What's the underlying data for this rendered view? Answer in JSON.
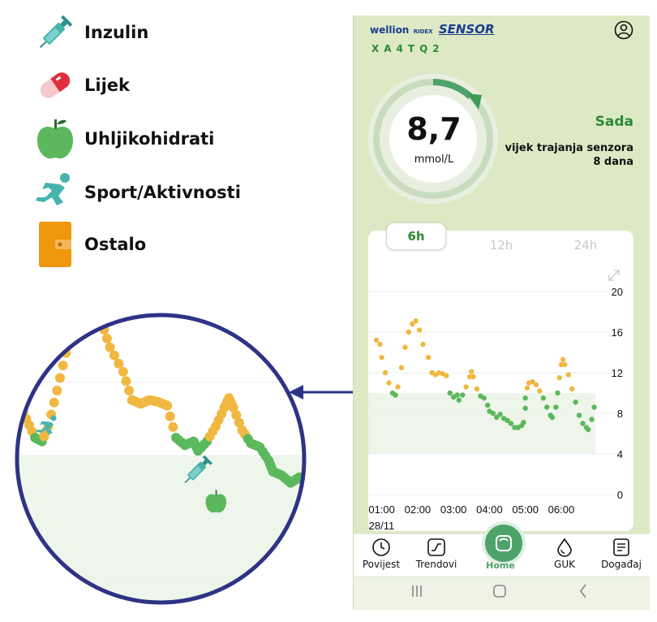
{
  "legend": [
    {
      "label": "Inzulin",
      "icon": "syringe-icon"
    },
    {
      "label": "Lijek",
      "icon": "pill-icon"
    },
    {
      "label": "Uhljikohidrati",
      "icon": "apple-icon"
    },
    {
      "label": "Sport/Aktivnosti",
      "icon": "running-person-icon"
    },
    {
      "label": "Ostalo",
      "icon": "wallet-icon"
    }
  ],
  "app": {
    "brand": "wellion",
    "brand_sub": "RIDEX",
    "brand_product": "SENSOR",
    "device_code": "XA4TQ2",
    "glucose_value": "8,7",
    "glucose_unit": "mmol/L",
    "status": "Sada",
    "sensor_life_label": "vijek trajanja senzora",
    "sensor_life_value": "8 dana",
    "tabs": [
      "6h",
      "12h",
      "24h"
    ],
    "active_tab": "6h"
  },
  "chart_data": {
    "type": "scatter",
    "x_ticks": [
      "01:00",
      "02:00",
      "03:00",
      "04:00",
      "05:00",
      "06:00"
    ],
    "date_label": "28/11",
    "y_ticks": [
      "0",
      "4",
      "8",
      "12",
      "16",
      "20"
    ],
    "ylim": [
      0,
      20
    ],
    "xlim": [
      0.85,
      6.95
    ],
    "target_range": [
      4,
      10
    ],
    "colors": {
      "in_range": "#5cb85c",
      "high": "#f0b840",
      "target_band": "#eef5ea"
    },
    "readings": [
      [
        0.85,
        15.2
      ],
      [
        0.95,
        14.8
      ],
      [
        1.0,
        13.5
      ],
      [
        1.1,
        12.0
      ],
      [
        1.2,
        11.0
      ],
      [
        1.3,
        10.0
      ],
      [
        1.38,
        9.8
      ],
      [
        1.45,
        10.6
      ],
      [
        1.55,
        12.5
      ],
      [
        1.65,
        14.5
      ],
      [
        1.75,
        16.0
      ],
      [
        1.85,
        16.8
      ],
      [
        1.95,
        17.1
      ],
      [
        2.05,
        16.2
      ],
      [
        2.15,
        14.8
      ],
      [
        2.3,
        13.5
      ],
      [
        2.4,
        12.0
      ],
      [
        2.5,
        11.8
      ],
      [
        2.6,
        12.0
      ],
      [
        2.7,
        11.9
      ],
      [
        2.8,
        11.7
      ],
      [
        2.9,
        10.0
      ],
      [
        3.0,
        9.6
      ],
      [
        3.1,
        9.8
      ],
      [
        3.15,
        9.3
      ],
      [
        3.25,
        9.8
      ],
      [
        3.35,
        10.6
      ],
      [
        3.45,
        11.6
      ],
      [
        3.5,
        12.1
      ],
      [
        3.55,
        11.6
      ],
      [
        3.65,
        10.4
      ],
      [
        3.75,
        9.7
      ],
      [
        3.85,
        9.5
      ],
      [
        3.95,
        8.8
      ],
      [
        4.0,
        8.2
      ],
      [
        4.1,
        8.0
      ],
      [
        4.2,
        7.6
      ],
      [
        4.3,
        7.9
      ],
      [
        4.4,
        7.5
      ],
      [
        4.5,
        7.3
      ],
      [
        4.6,
        7.0
      ],
      [
        4.7,
        6.6
      ],
      [
        4.8,
        6.6
      ],
      [
        4.9,
        6.8
      ],
      [
        4.95,
        7.1
      ],
      [
        5.0,
        8.5
      ],
      [
        5.0,
        9.5
      ],
      [
        5.05,
        10.5
      ],
      [
        5.1,
        11.0
      ],
      [
        5.2,
        11.1
      ],
      [
        5.3,
        10.8
      ],
      [
        5.4,
        10.2
      ],
      [
        5.5,
        9.5
      ],
      [
        5.6,
        8.6
      ],
      [
        5.7,
        7.8
      ],
      [
        5.75,
        7.6
      ],
      [
        5.85,
        8.6
      ],
      [
        5.9,
        10.0
      ],
      [
        5.95,
        11.5
      ],
      [
        6.0,
        12.8
      ],
      [
        6.05,
        13.3
      ],
      [
        6.1,
        12.8
      ],
      [
        6.2,
        11.8
      ],
      [
        6.3,
        10.4
      ],
      [
        6.4,
        9.1
      ],
      [
        6.5,
        7.8
      ],
      [
        6.6,
        7.0
      ],
      [
        6.7,
        6.6
      ],
      [
        6.75,
        6.4
      ],
      [
        6.85,
        7.4
      ],
      [
        6.92,
        8.6
      ]
    ]
  },
  "nav": {
    "items": [
      {
        "label": "Povijest",
        "icon": "clock-icon"
      },
      {
        "label": "Trendovi",
        "icon": "trend-icon"
      },
      {
        "label": "Home",
        "icon": "home-sensor-icon"
      },
      {
        "label": "GUK",
        "icon": "drop-icon"
      },
      {
        "label": "Događaj",
        "icon": "notes-icon"
      }
    ]
  },
  "zoom": {
    "colors": {
      "in_range": "#5cb85c",
      "high": "#f0b840",
      "border": "#2e3386",
      "target_band": "#eef5ea"
    }
  }
}
